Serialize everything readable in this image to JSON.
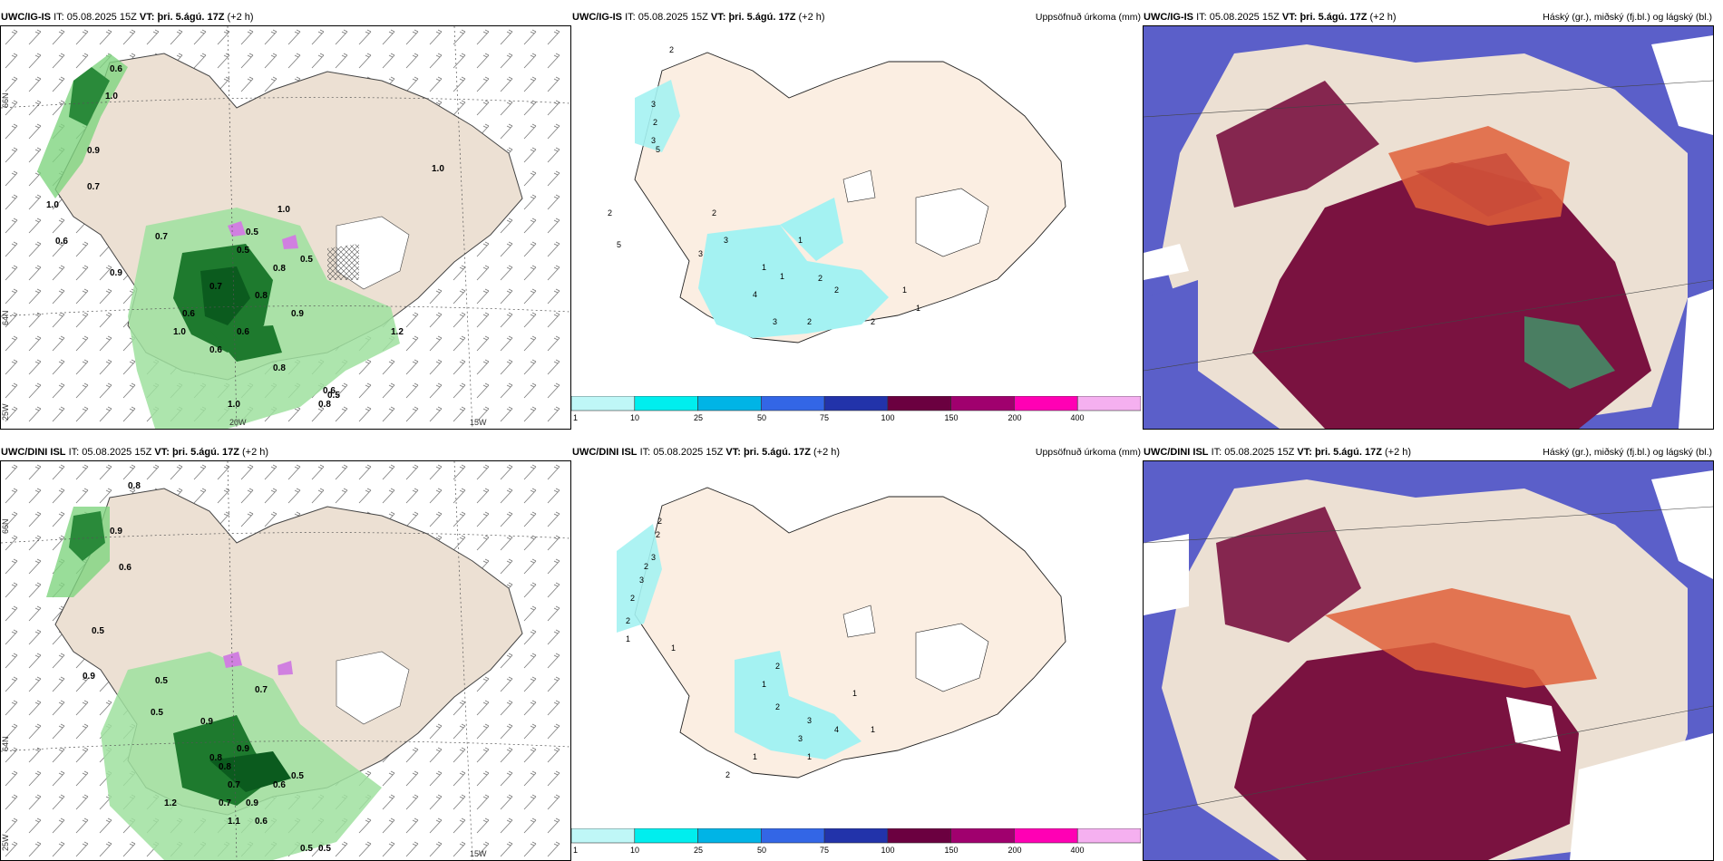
{
  "panels": {
    "top": {
      "wind": {
        "model": "UWC/IG-IS",
        "it_label": "IT:",
        "it": "05.08.2025 15Z",
        "vt_label": "VT:",
        "vt": "þri. 5.ágú. 17Z",
        "lead": "(+2 h)"
      },
      "precip": {
        "model": "UWC/IG-IS",
        "it_label": "IT:",
        "it": "05.08.2025 15Z",
        "vt_label": "VT:",
        "vt": "þri. 5.ágú. 17Z",
        "lead": "(+2 h)",
        "title": "Uppsöfnuð úrkoma (mm)"
      },
      "cloud": {
        "model": "UWC/IG-IS",
        "it_label": "IT:",
        "it": "05.08.2025 15Z",
        "vt_label": "VT:",
        "vt": "þri. 5.ágú. 17Z",
        "lead": "(+2 h)",
        "title": "Háský (gr.), miðský (fj.bl.) og lágský (bl.)"
      }
    },
    "bottom": {
      "wind": {
        "model": "UWC/DINI ISL",
        "it_label": "IT:",
        "it": "05.08.2025 15Z",
        "vt_label": "VT:",
        "vt": "þri. 5.ágú. 17Z",
        "lead": "(+2 h)"
      },
      "precip": {
        "model": "UWC/DINI ISL",
        "it_label": "IT:",
        "it": "05.08.2025 15Z",
        "vt_label": "VT:",
        "vt": "þri. 5.ágú. 17Z",
        "lead": "(+2 h)",
        "title": "Uppsöfnuð úrkoma (mm)"
      },
      "cloud": {
        "model": "UWC/DINI ISL",
        "it_label": "IT:",
        "it": "05.08.2025 15Z",
        "vt_label": "VT:",
        "vt": "þri. 5.ágú. 17Z",
        "lead": "(+2 h)",
        "title": "Háský (gr.), miðský (fj.bl.) og lágský (bl.)"
      }
    }
  },
  "axis_labels": {
    "lat66": "66N",
    "lat64": "64N",
    "lon25": "25W",
    "lon20": "20W",
    "lon15": "15W"
  },
  "colorbar": {
    "labels": [
      "1",
      "10",
      "25",
      "50",
      "75",
      "100",
      "150",
      "200",
      "400"
    ],
    "colors": [
      "#bff7f7",
      "#00eeee",
      "#00b4e6",
      "#3366e6",
      "#2233aa",
      "#6b0040",
      "#a0006e",
      "#ff00b4",
      "#f5b0f0"
    ]
  },
  "wind_values_top": [
    "0.6",
    "1.0",
    "0.9",
    "0.7",
    "1.0",
    "0.6",
    "0.7",
    "1.0",
    "0.5",
    "1.0",
    "0.9",
    "0.5",
    "0.7",
    "0.8",
    "0.9",
    "1.0",
    "0.8",
    "0.6",
    "1.0",
    "0.8",
    "0.6",
    "0.5",
    "0.6",
    "0.6",
    "0.5",
    "1.2",
    "0.8"
  ],
  "wind_values_bottom": [
    "0.8",
    "0.9",
    "0.6",
    "0.5",
    "0.9",
    "0.5",
    "0.7",
    "0.5",
    "0.9",
    "1.2",
    "0.8",
    "0.7",
    "0.9",
    "0.6",
    "0.5",
    "0.5",
    "1.1",
    "0.5",
    "0.7",
    "0.6",
    "0.8",
    "0.9"
  ],
  "precip_values_top": [
    "2",
    "3",
    "2",
    "3",
    "5",
    "2",
    "3",
    "1",
    "1",
    "1",
    "2",
    "2",
    "5",
    "3",
    "4",
    "3",
    "2",
    "2",
    "2",
    "1",
    "1"
  ],
  "precip_values_bottom": [
    "2",
    "2",
    "3",
    "2",
    "3",
    "2",
    "2",
    "1",
    "1",
    "2",
    "1",
    "2",
    "3",
    "4",
    "3",
    "1",
    "1",
    "2",
    "1",
    "1"
  ],
  "map_colors": {
    "land": "#ece0d3",
    "land_precip": "#fbeee2",
    "sea": "#ffffff",
    "green": "#7fd47f",
    "darkgreen": "#0b5b1e",
    "cyan": "#a4f2f2",
    "cloud_sea": "#5b5fc9",
    "cloud_high": "#7a1240",
    "cloud_mid": "#e0603a"
  }
}
